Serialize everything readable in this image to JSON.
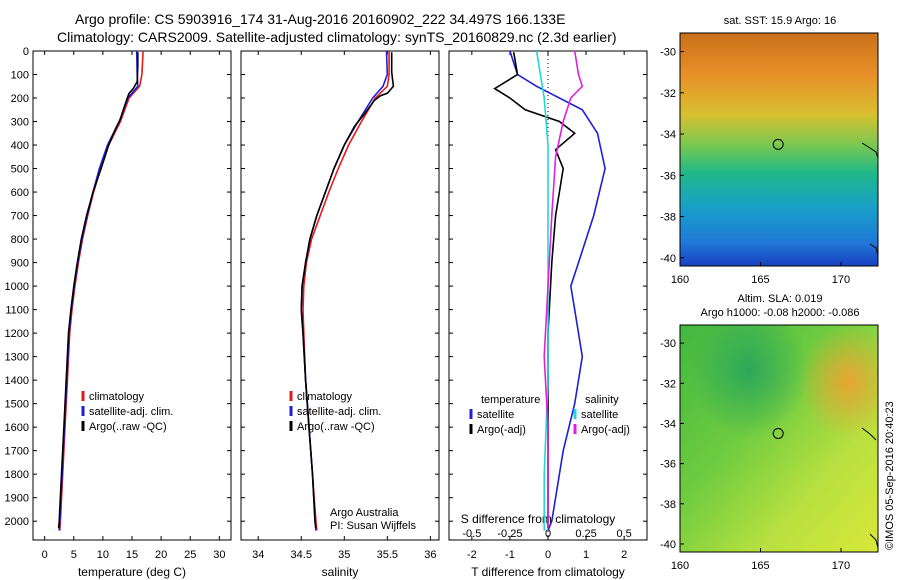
{
  "titles": {
    "line1": "Argo profile: CS 5903916_174 31-Aug-2016 20160902_222 34.497S 166.133E",
    "line2": "Climatology: CARS2009. Satellite-adjusted climatology: synTS_20160829.nc (2.3d earlier)"
  },
  "colors": {
    "climatology": "#e41a1c",
    "satellite_adj": "#1f1fd6",
    "argo": "#000000",
    "salinity_sat": "#22d8d8",
    "salinity_argo": "#e020e0"
  },
  "chart_data": [
    {
      "id": "temperature",
      "type": "line",
      "xlabel": "temperature (deg C)",
      "ylabel": "",
      "xlim": [
        -2,
        32
      ],
      "ylim": [
        2080,
        0
      ],
      "xticks": [
        0,
        5,
        10,
        15,
        20,
        25,
        30
      ],
      "yticks": [
        0,
        100,
        200,
        300,
        400,
        500,
        600,
        700,
        800,
        900,
        1000,
        1100,
        1200,
        1300,
        1400,
        1500,
        1600,
        1700,
        1800,
        1900,
        2000
      ],
      "legend": [
        "climatology",
        "satellite-adj. clim.",
        "Argo(..raw -QC)"
      ],
      "series": [
        {
          "name": "climatology",
          "color_key": "climatology",
          "points": [
            [
              16.9,
              0
            ],
            [
              16.7,
              100
            ],
            [
              16.3,
              150
            ],
            [
              14.5,
              200
            ],
            [
              13.0,
              300
            ],
            [
              11.0,
              400
            ],
            [
              9.6,
              500
            ],
            [
              8.4,
              600
            ],
            [
              7.4,
              700
            ],
            [
              6.5,
              800
            ],
            [
              5.8,
              900
            ],
            [
              5.2,
              1000
            ],
            [
              4.7,
              1100
            ],
            [
              4.3,
              1200
            ],
            [
              3.9,
              1400
            ],
            [
              3.5,
              1600
            ],
            [
              3.1,
              1800
            ],
            [
              2.7,
              2000
            ],
            [
              2.6,
              2040
            ]
          ]
        },
        {
          "name": "satellite-adj. clim.",
          "color_key": "satellite_adj",
          "points": [
            [
              15.8,
              0
            ],
            [
              15.9,
              100
            ],
            [
              16.0,
              150
            ],
            [
              14.3,
              200
            ],
            [
              12.8,
              300
            ],
            [
              10.8,
              400
            ],
            [
              9.4,
              500
            ],
            [
              8.3,
              600
            ],
            [
              7.3,
              700
            ],
            [
              6.4,
              800
            ],
            [
              5.7,
              900
            ],
            [
              5.1,
              1000
            ],
            [
              4.6,
              1100
            ],
            [
              4.2,
              1200
            ],
            [
              3.8,
              1400
            ],
            [
              3.4,
              1600
            ],
            [
              3.0,
              1800
            ],
            [
              2.6,
              2000
            ],
            [
              2.5,
              2040
            ]
          ]
        },
        {
          "name": "Argo(..raw -QC)",
          "color_key": "argo",
          "points": [
            [
              16.0,
              5
            ],
            [
              16.0,
              60
            ],
            [
              15.9,
              130
            ],
            [
              15.2,
              160
            ],
            [
              14.5,
              180
            ],
            [
              14.2,
              200
            ],
            [
              13.5,
              250
            ],
            [
              13.0,
              290
            ],
            [
              12.2,
              330
            ],
            [
              11.0,
              400
            ],
            [
              9.7,
              500
            ],
            [
              8.3,
              600
            ],
            [
              7.2,
              700
            ],
            [
              6.3,
              800
            ],
            [
              5.6,
              900
            ],
            [
              5.0,
              1000
            ],
            [
              4.5,
              1100
            ],
            [
              4.1,
              1200
            ],
            [
              3.7,
              1400
            ],
            [
              3.3,
              1600
            ],
            [
              2.9,
              1800
            ],
            [
              2.5,
              2000
            ],
            [
              2.4,
              2030
            ]
          ]
        }
      ]
    },
    {
      "id": "salinity",
      "type": "line",
      "xlabel": "salinity",
      "ylabel": "",
      "xlim": [
        33.8,
        36.1
      ],
      "ylim": [
        2080,
        0
      ],
      "xticks": [
        34,
        34.5,
        35,
        35.5,
        36
      ],
      "xtick_labels": [
        "34",
        "34.5",
        "35",
        "35.5",
        "36"
      ],
      "legend": [
        "climatology",
        "satellite-adj. clim.",
        "Argo(..raw -QC)"
      ],
      "annotation": [
        "Argo Australia",
        "PI: Susan Wijffels"
      ],
      "series": [
        {
          "name": "climatology",
          "color_key": "climatology",
          "points": [
            [
              35.52,
              0
            ],
            [
              35.52,
              100
            ],
            [
              35.5,
              150
            ],
            [
              35.36,
              200
            ],
            [
              35.2,
              300
            ],
            [
              35.05,
              400
            ],
            [
              34.93,
              500
            ],
            [
              34.82,
              600
            ],
            [
              34.72,
              700
            ],
            [
              34.62,
              800
            ],
            [
              34.56,
              900
            ],
            [
              34.53,
              1000
            ],
            [
              34.52,
              1100
            ],
            [
              34.53,
              1200
            ],
            [
              34.55,
              1400
            ],
            [
              34.59,
              1600
            ],
            [
              34.63,
              1800
            ],
            [
              34.67,
              2000
            ],
            [
              34.68,
              2040
            ]
          ]
        },
        {
          "name": "satellite-adj. clim.",
          "color_key": "satellite_adj",
          "points": [
            [
              35.49,
              0
            ],
            [
              35.5,
              100
            ],
            [
              35.45,
              150
            ],
            [
              35.33,
              200
            ],
            [
              35.16,
              300
            ],
            [
              35.0,
              400
            ],
            [
              34.88,
              500
            ],
            [
              34.78,
              600
            ],
            [
              34.68,
              700
            ],
            [
              34.6,
              800
            ],
            [
              34.55,
              900
            ],
            [
              34.51,
              1000
            ],
            [
              34.5,
              1100
            ],
            [
              34.52,
              1200
            ],
            [
              34.55,
              1400
            ],
            [
              34.59,
              1600
            ],
            [
              34.63,
              1800
            ],
            [
              34.66,
              2000
            ],
            [
              34.67,
              2040
            ]
          ]
        },
        {
          "name": "Argo(..raw -QC)",
          "color_key": "argo",
          "points": [
            [
              35.55,
              5
            ],
            [
              35.55,
              90
            ],
            [
              35.57,
              150
            ],
            [
              35.5,
              180
            ],
            [
              35.42,
              190
            ],
            [
              35.35,
              210
            ],
            [
              35.25,
              260
            ],
            [
              35.12,
              320
            ],
            [
              35.0,
              400
            ],
            [
              34.88,
              500
            ],
            [
              34.78,
              600
            ],
            [
              34.68,
              700
            ],
            [
              34.6,
              800
            ],
            [
              34.55,
              900
            ],
            [
              34.51,
              1000
            ],
            [
              34.5,
              1100
            ],
            [
              34.52,
              1200
            ],
            [
              34.55,
              1400
            ],
            [
              34.59,
              1600
            ],
            [
              34.63,
              1800
            ],
            [
              34.66,
              2000
            ],
            [
              34.67,
              2030
            ]
          ]
        }
      ]
    },
    {
      "id": "difference",
      "type": "line",
      "xlabel": "T difference from climatology",
      "xlabel_top": "S difference from climatology",
      "ylabel": "",
      "xlim": [
        -2.6,
        2.6
      ],
      "ylim": [
        2080,
        0
      ],
      "xticks": [
        -2,
        -1,
        0,
        1,
        2
      ],
      "xtick_labels": [
        "-2",
        "-1",
        "0",
        "1",
        "2"
      ],
      "s_ticks": [
        -0.5,
        -0.25,
        0,
        0.25,
        0.5
      ],
      "s_tick_labels": [
        "-0.5",
        "-0.25",
        "0",
        "0.25",
        "0.5"
      ],
      "legend_temperature": [
        "temperature",
        "satellite",
        "Argo(-adj)"
      ],
      "legend_salinity": [
        "salinity",
        "satellite",
        "Argo(-adj)"
      ],
      "series": [
        {
          "name": "temperature satellite",
          "color_key": "satellite_adj",
          "points": [
            [
              -1.0,
              0
            ],
            [
              -0.8,
              100
            ],
            [
              -0.3,
              150
            ],
            [
              0.9,
              250
            ],
            [
              1.3,
              350
            ],
            [
              1.5,
              500
            ],
            [
              1.2,
              700
            ],
            [
              0.8,
              900
            ],
            [
              0.6,
              1000
            ],
            [
              0.7,
              1100
            ],
            [
              0.9,
              1300
            ],
            [
              0.7,
              1500
            ],
            [
              0.4,
              1700
            ],
            [
              0.3,
              1800
            ],
            [
              0.1,
              2000
            ],
            [
              0.0,
              2040
            ]
          ]
        },
        {
          "name": "temperature Argo(-adj)",
          "color_key": "argo",
          "points": [
            [
              -0.9,
              5
            ],
            [
              -0.8,
              100
            ],
            [
              -1.4,
              160
            ],
            [
              -1.0,
              200
            ],
            [
              -0.6,
              250
            ],
            [
              0.3,
              300
            ],
            [
              0.7,
              350
            ],
            [
              0.2,
              420
            ],
            [
              0.4,
              500
            ],
            [
              0.2,
              700
            ],
            [
              0.1,
              900
            ],
            [
              0.0,
              1200
            ],
            [
              0.0,
              1600
            ],
            [
              0.0,
              2030
            ]
          ]
        },
        {
          "name": "salinity satellite",
          "color_key": "salinity_sat",
          "points": [
            [
              -0.3,
              0
            ],
            [
              -0.2,
              100
            ],
            [
              -0.1,
              200
            ],
            [
              0.0,
              400
            ],
            [
              0.0,
              700
            ],
            [
              0.0,
              1000
            ],
            [
              0.0,
              1400
            ],
            [
              -0.1,
              1800
            ],
            [
              -0.1,
              2040
            ]
          ]
        },
        {
          "name": "salinity Argo(-adj)",
          "color_key": "salinity_argo",
          "points": [
            [
              0.7,
              0
            ],
            [
              0.8,
              100
            ],
            [
              0.9,
              150
            ],
            [
              0.6,
              200
            ],
            [
              0.4,
              300
            ],
            [
              0.2,
              450
            ],
            [
              0.1,
              700
            ],
            [
              0.0,
              1000
            ],
            [
              -0.1,
              1300
            ],
            [
              0.0,
              1600
            ],
            [
              0.0,
              1800
            ],
            [
              0.0,
              2030
            ]
          ]
        }
      ]
    }
  ],
  "maps": {
    "sst": {
      "title": "sat. SST: 15.9 Argo: 16",
      "xticks": [
        "160",
        "165",
        "170"
      ],
      "yticks": [
        "-30",
        "-32",
        "-34",
        "-36",
        "-38",
        "-40"
      ],
      "marker": {
        "lon": 166.1,
        "lat": -34.5
      }
    },
    "sla": {
      "title_line1": "Altim. SLA: 0.019",
      "title_line2": "Argo h1000: -0.08 h2000: -0.086",
      "xticks": [
        "160",
        "165",
        "170"
      ],
      "yticks": [
        "-30",
        "-32",
        "-34",
        "-36",
        "-38",
        "-40"
      ],
      "marker": {
        "lon": 166.1,
        "lat": -34.5
      }
    }
  },
  "footer": {
    "stamp": "©IMOS 05-Sep-2016 20:40:23"
  }
}
